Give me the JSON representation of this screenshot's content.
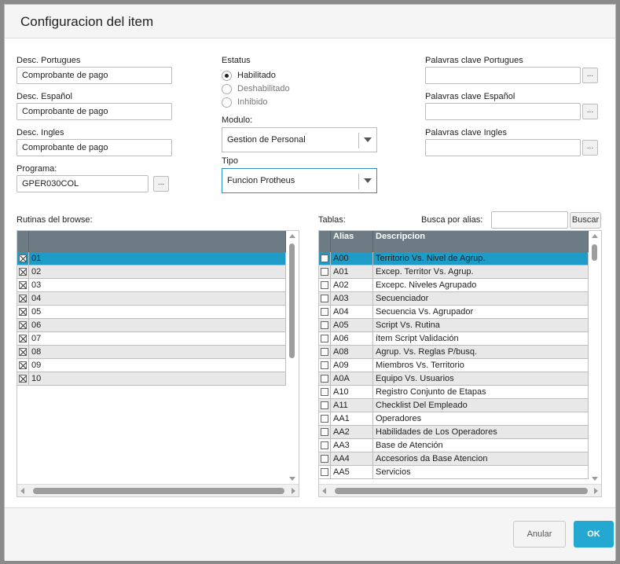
{
  "dialog": {
    "title": "Configuracion del item"
  },
  "fields": {
    "desc_pt_label": "Desc. Portugues",
    "desc_pt_value": "Comprobante de pago",
    "desc_es_label": "Desc. Español",
    "desc_es_value": "Comprobante de pago",
    "desc_en_label": "Desc. Ingles",
    "desc_en_value": "Comprobante de pago",
    "programa_label": "Programa:",
    "programa_value": "GPER030COL",
    "ellipsis": "...",
    "estatus_label": "Estatus",
    "estatus_options": [
      "Habilitado",
      "Deshabilitado",
      "Inhibido"
    ],
    "estatus_selected": "Habilitado",
    "modulo_label": "Modulo:",
    "modulo_value": "Gestion de Personal",
    "tipo_label": "Tipo",
    "tipo_value": "Funcion Protheus",
    "kw_pt_label": "Palavras clave Portugues",
    "kw_pt_value": "",
    "kw_es_label": "Palavras clave Español",
    "kw_es_value": "",
    "kw_en_label": "Palavras clave Ingles",
    "kw_en_value": ""
  },
  "rutinas": {
    "label": "Rutinas del browse:",
    "rows": [
      {
        "value": "01",
        "checked": true,
        "selected": true
      },
      {
        "value": "02",
        "checked": true
      },
      {
        "value": "03",
        "checked": true
      },
      {
        "value": "04",
        "checked": true
      },
      {
        "value": "05",
        "checked": true
      },
      {
        "value": "06",
        "checked": true
      },
      {
        "value": "07",
        "checked": true
      },
      {
        "value": "08",
        "checked": true
      },
      {
        "value": "09",
        "checked": true
      },
      {
        "value": "10",
        "checked": true
      }
    ]
  },
  "tablas": {
    "label": "Tablas:",
    "search_label": "Busca por alias:",
    "search_value": "",
    "search_button": "Buscar",
    "columns": [
      "Alias",
      "Descripcion"
    ],
    "rows": [
      {
        "alias": "A00",
        "desc": "Territorio Vs. Nivel de Agrup.",
        "selected": true
      },
      {
        "alias": "A01",
        "desc": "Excep. Territor Vs. Agrup."
      },
      {
        "alias": "A02",
        "desc": "Excepc. Niveles Agrupado"
      },
      {
        "alias": "A03",
        "desc": "Secuenciador"
      },
      {
        "alias": "A04",
        "desc": "Secuencia Vs. Agrupador"
      },
      {
        "alias": "A05",
        "desc": "Script Vs. Rutina"
      },
      {
        "alias": "A06",
        "desc": "ítem Script Validación"
      },
      {
        "alias": "A08",
        "desc": "Agrup. Vs. Reglas P/busq."
      },
      {
        "alias": "A09",
        "desc": "Miembros Vs. Territorio"
      },
      {
        "alias": "A0A",
        "desc": "Equipo Vs. Usuarios"
      },
      {
        "alias": "A10",
        "desc": "Registro Conjunto de Etapas"
      },
      {
        "alias": "A11",
        "desc": "Checklist Del Empleado"
      },
      {
        "alias": "AA1",
        "desc": "Operadores"
      },
      {
        "alias": "AA2",
        "desc": "Habilidades de Los Operadores"
      },
      {
        "alias": "AA3",
        "desc": "Base de Atención"
      },
      {
        "alias": "AA4",
        "desc": "Accesorios da Base Atencion"
      },
      {
        "alias": "AA5",
        "desc": "Servicios"
      }
    ]
  },
  "footer": {
    "cancel": "Anular",
    "ok": "OK"
  },
  "colors": {
    "header_bg": "#6d7b84",
    "selection": "#1e9bc6",
    "ok_button": "#23a8d1"
  }
}
